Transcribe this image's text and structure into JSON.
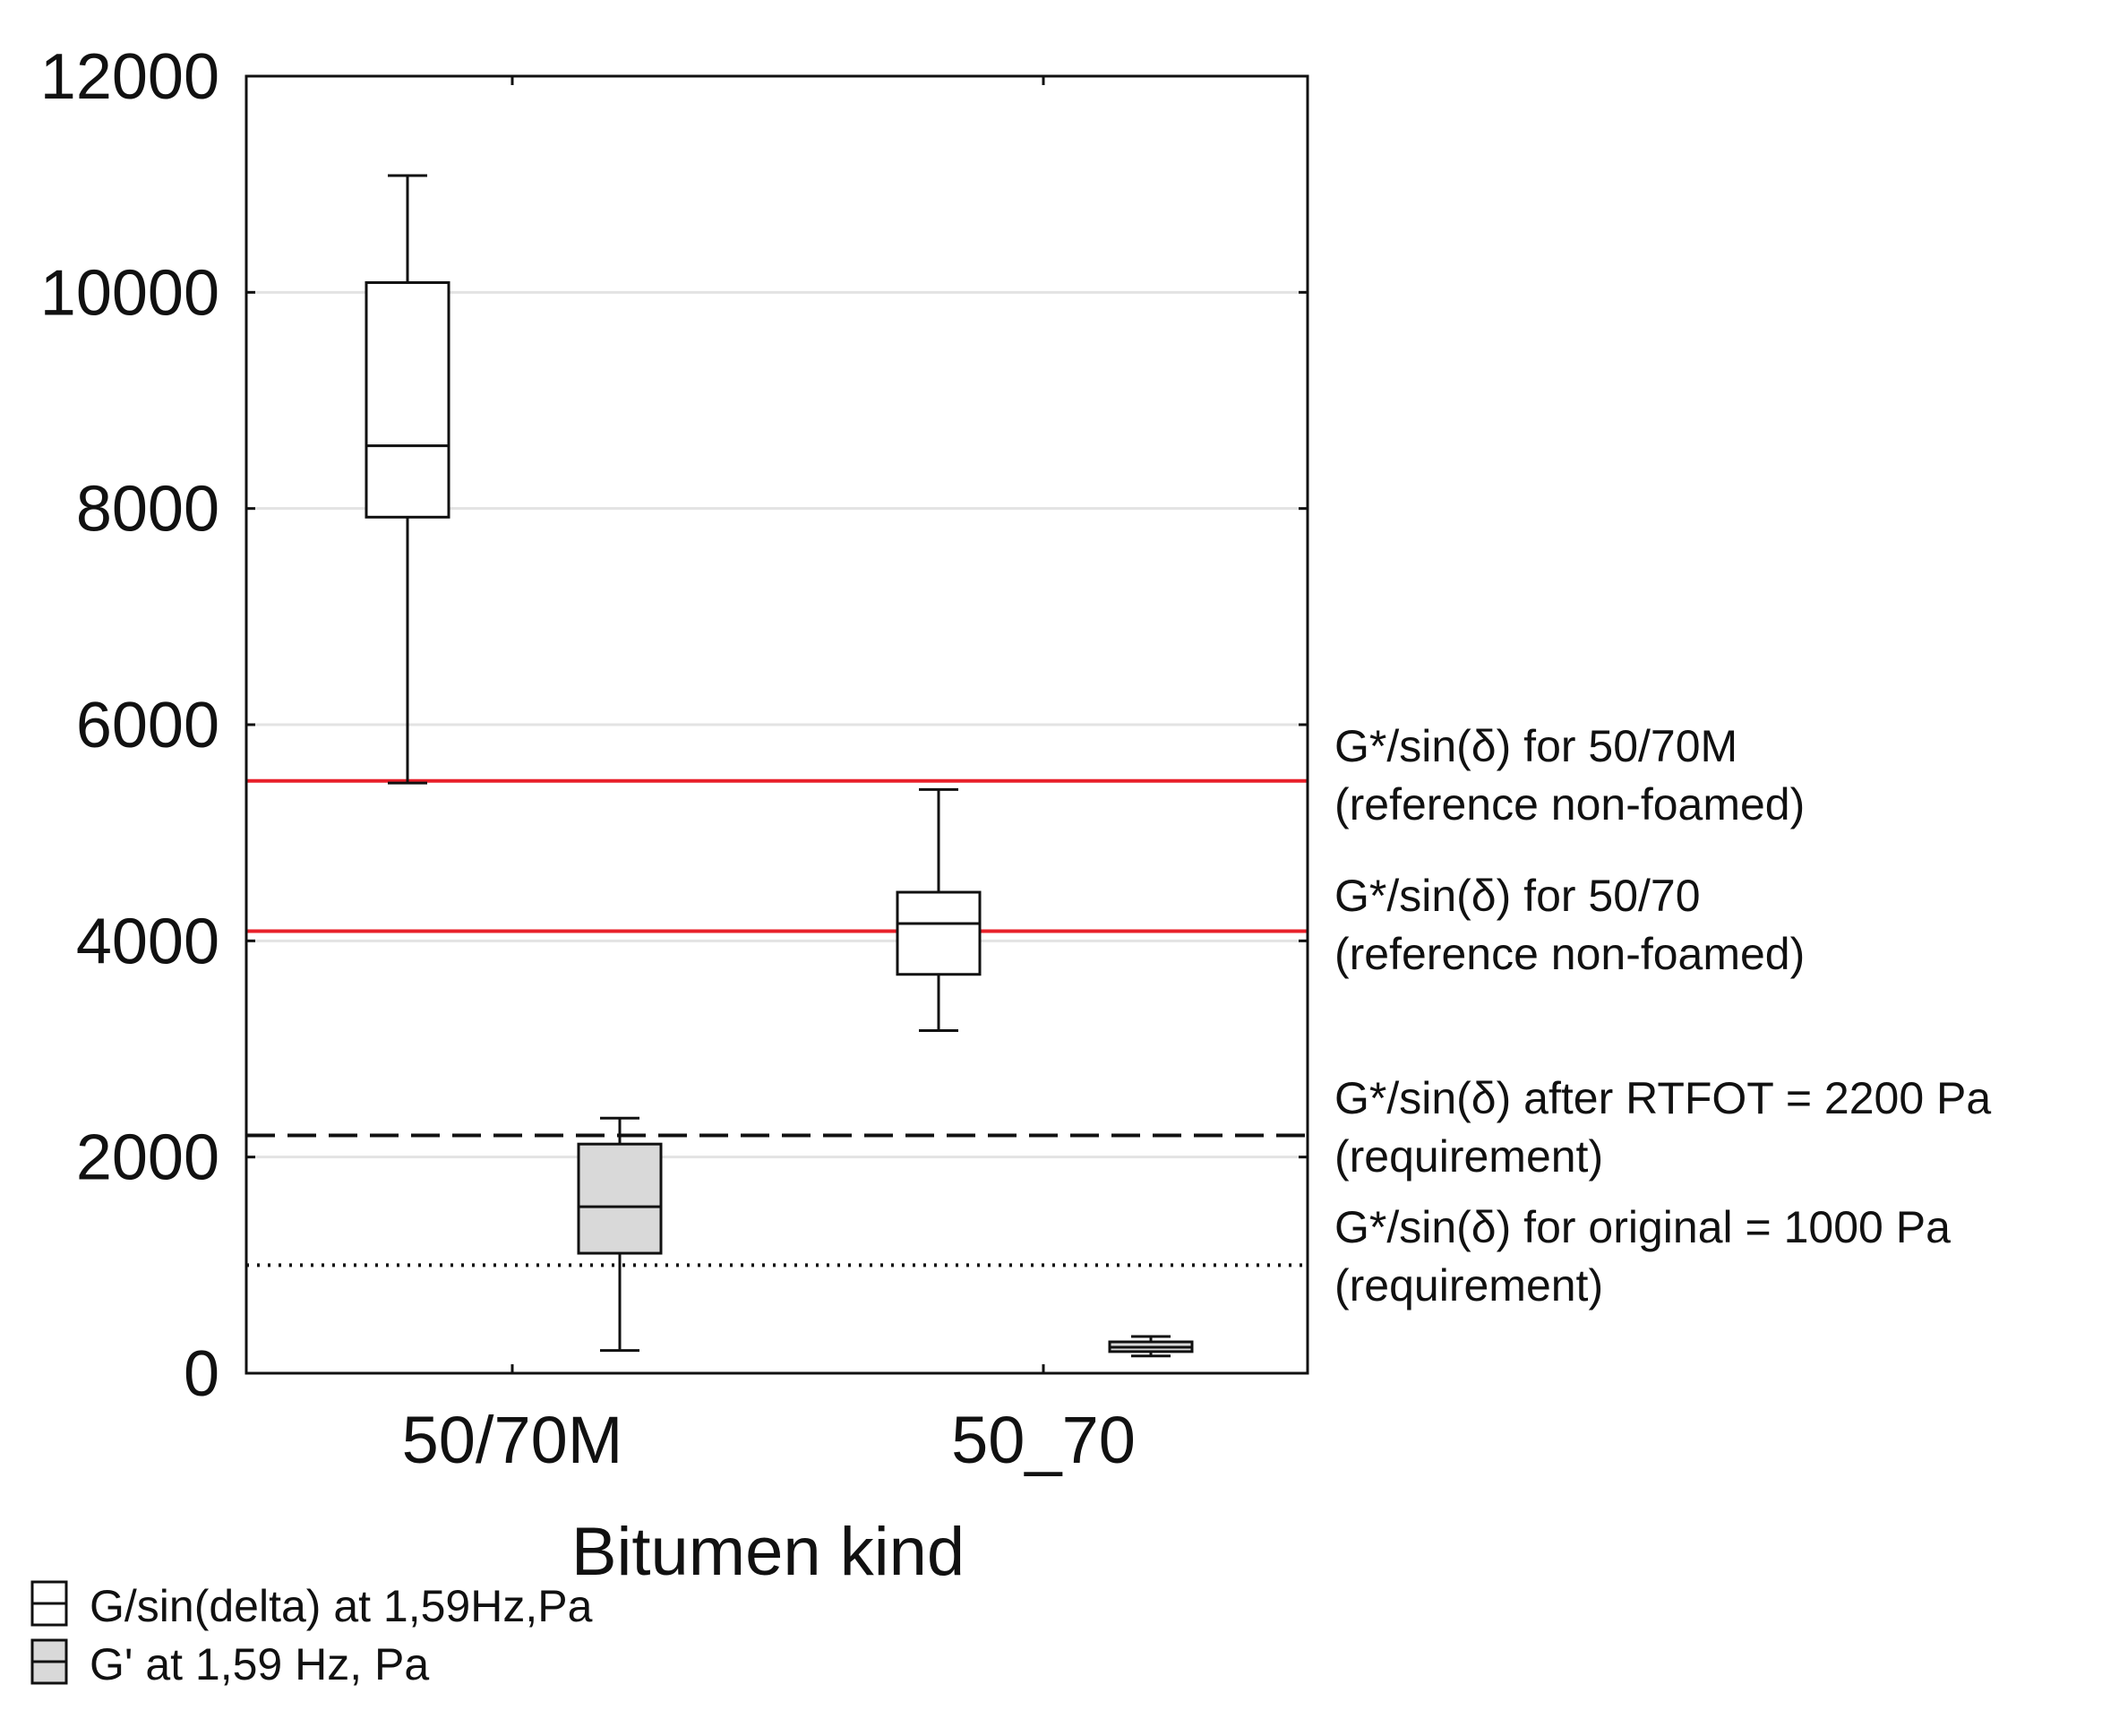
{
  "chart_data": {
    "type": "boxplot",
    "title": "",
    "xlabel": "Bitumen kind",
    "ylabel": "",
    "ylim": [
      0,
      12000
    ],
    "yticks": [
      0,
      2000,
      4000,
      6000,
      8000,
      10000,
      12000
    ],
    "ytick_labels": [
      "0",
      "2000",
      "4000",
      "6000",
      "8000",
      "10000",
      "12000"
    ],
    "categories": [
      "50/70M",
      "50_70"
    ],
    "grid": "horizontal",
    "series": [
      {
        "name": "G/sin(delta) at 1,59Hz,Pa",
        "fill": "#ffffff",
        "boxes": [
          {
            "category": "50/70M",
            "whisker_low": 5460,
            "q1": 7920,
            "median": 8580,
            "q3": 10090,
            "whisker_high": 11080
          },
          {
            "category": "50_70",
            "whisker_low": 3170,
            "q1": 3690,
            "median": 4160,
            "q3": 4450,
            "whisker_high": 5400
          }
        ]
      },
      {
        "name": "G' at 1,59 Hz, Pa",
        "fill": "#d9d9d9",
        "boxes": [
          {
            "category": "50/70M",
            "whisker_low": 210,
            "q1": 1110,
            "median": 1540,
            "q3": 2120,
            "whisker_high": 2360
          },
          {
            "category": "50_70",
            "whisker_low": 160,
            "q1": 200,
            "median": 240,
            "q3": 290,
            "whisker_high": 340
          }
        ]
      }
    ],
    "reference_lines": [
      {
        "value": 5480,
        "style": "solid",
        "color": "#e8202a",
        "label_line1": "G*/sin(δ) for 50/70M",
        "label_line2": "(reference non-foamed)"
      },
      {
        "value": 4090,
        "style": "solid",
        "color": "#e8202a",
        "label_line1": "G*/sin(δ) for 50/70",
        "label_line2": "(reference non-foamed)"
      },
      {
        "value": 2200,
        "style": "dashed",
        "color": "#111111",
        "label_line1": "G*/sin(δ)  after RTFOT = 2200 Pa",
        "label_line2": "(requirement)"
      },
      {
        "value": 1000,
        "style": "dotted",
        "color": "#111111",
        "label_line1": "G*/sin(δ) for original = 1000 Pa",
        "label_line2": "(requirement)"
      }
    ],
    "legend": {
      "placement": "bottom-left",
      "entries": [
        "G/sin(delta) at 1,59Hz,Pa",
        "G' at 1,59 Hz, Pa"
      ]
    }
  }
}
